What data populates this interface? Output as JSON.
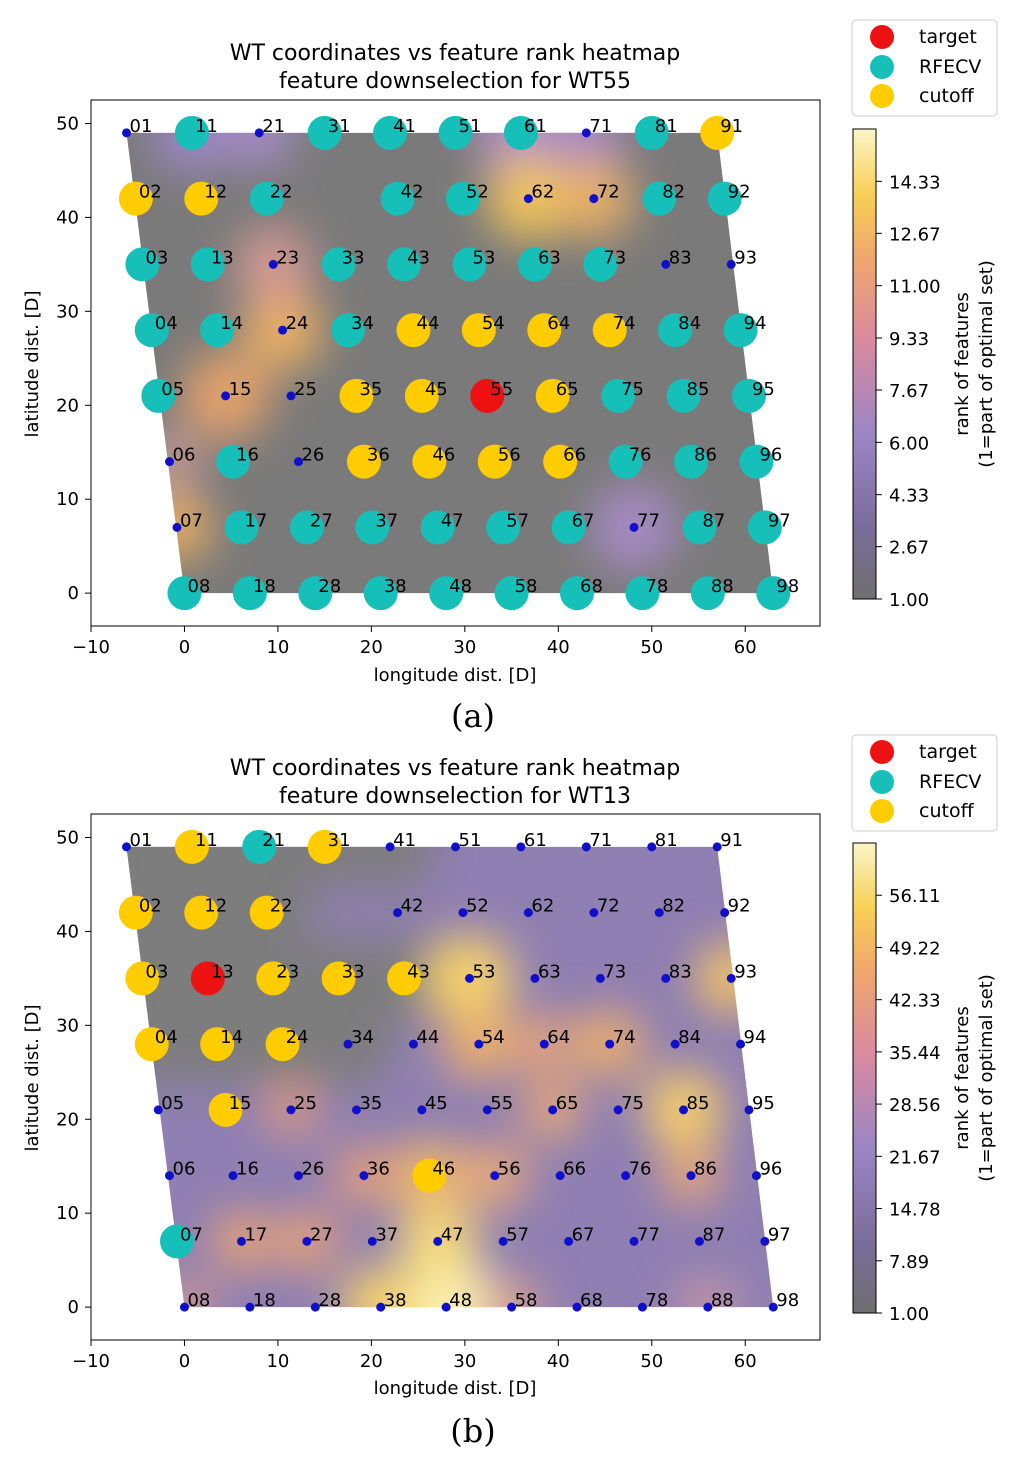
{
  "chart_data": [
    {
      "id": "a",
      "type": "scatter",
      "title": "WT coordinates vs feature rank heatmap",
      "subtitle": "feature downselection for WT55",
      "xlabel": "longitude dist. [D]",
      "ylabel": "latitude dist. [D]",
      "xlim": [
        -10,
        68
      ],
      "ylim": [
        -3.5,
        52.5
      ],
      "xticks": [
        "−10",
        "0",
        "10",
        "20",
        "30",
        "40",
        "50",
        "60"
      ],
      "xtick_values": [
        -10,
        0,
        10,
        20,
        30,
        40,
        50,
        60
      ],
      "yticks": [
        "0",
        "10",
        "20",
        "30",
        "40",
        "50"
      ],
      "ytick_values": [
        0,
        10,
        20,
        30,
        40,
        50
      ],
      "caption": "(a)",
      "colorbar": {
        "label": "rank of features",
        "label2": "(1=part of optimal set)",
        "tick_labels": [
          "1.00",
          "2.67",
          "4.33",
          "6.00",
          "7.67",
          "9.33",
          "11.00",
          "12.67",
          "14.33"
        ],
        "min": 1.0,
        "max": 16.0
      },
      "legend": {
        "position": "outside-top-right",
        "entries": [
          {
            "label": "target",
            "color": "#ee1111"
          },
          {
            "label": "RFECV",
            "color": "#17bfb9"
          },
          {
            "label": "cutoff",
            "color": "#ffcc00"
          }
        ]
      },
      "status": {
        "target": [
          "55"
        ],
        "rfecv": [
          "11",
          "31",
          "41",
          "51",
          "61",
          "81",
          "22",
          "42",
          "52",
          "82",
          "92",
          "03",
          "13",
          "33",
          "43",
          "53",
          "63",
          "73",
          "04",
          "14",
          "34",
          "84",
          "94",
          "05",
          "75",
          "85",
          "95",
          "16",
          "76",
          "86",
          "96",
          "17",
          "27",
          "37",
          "47",
          "57",
          "67",
          "87",
          "97",
          "08",
          "18",
          "28",
          "38",
          "48",
          "58",
          "68",
          "78",
          "88",
          "98"
        ],
        "cutoff": [
          "91",
          "02",
          "12",
          "44",
          "54",
          "64",
          "74",
          "35",
          "45",
          "65",
          "36",
          "46",
          "56",
          "66"
        ]
      },
      "hot_turbines": [
        "15",
        "24",
        "23",
        "62",
        "72",
        "07",
        "77",
        "21"
      ]
    },
    {
      "id": "b",
      "type": "scatter",
      "title": "WT coordinates vs feature rank heatmap",
      "subtitle": "feature downselection for WT13",
      "xlabel": "longitude dist. [D]",
      "ylabel": "latitude dist. [D]",
      "xlim": [
        -10,
        68
      ],
      "ylim": [
        -3.5,
        52.5
      ],
      "xticks": [
        "−10",
        "0",
        "10",
        "20",
        "30",
        "40",
        "50",
        "60"
      ],
      "xtick_values": [
        -10,
        0,
        10,
        20,
        30,
        40,
        50,
        60
      ],
      "yticks": [
        "0",
        "10",
        "20",
        "30",
        "40",
        "50"
      ],
      "ytick_values": [
        0,
        10,
        20,
        30,
        40,
        50
      ],
      "caption": "(b)",
      "colorbar": {
        "label": "rank of features",
        "label2": "(1=part of optimal set)",
        "tick_labels": [
          "1.00",
          "7.89",
          "14.78",
          "21.67",
          "28.56",
          "35.44",
          "42.33",
          "49.22",
          "56.11"
        ],
        "min": 1.0,
        "max": 63.0
      },
      "legend": {
        "position": "outside-top-right",
        "entries": [
          {
            "label": "target",
            "color": "#ee1111"
          },
          {
            "label": "RFECV",
            "color": "#17bfb9"
          },
          {
            "label": "cutoff",
            "color": "#ffcc00"
          }
        ]
      },
      "status": {
        "target": [
          "13"
        ],
        "rfecv": [
          "21",
          "07"
        ],
        "cutoff": [
          "11",
          "31",
          "02",
          "12",
          "22",
          "03",
          "23",
          "33",
          "43",
          "04",
          "14",
          "24",
          "15",
          "46"
        ]
      },
      "hot_turbines": [
        "48",
        "53",
        "93",
        "85",
        "38",
        "47",
        "54",
        "74",
        "64"
      ]
    }
  ],
  "turbines": [
    {
      "id": "01",
      "x": -6.2,
      "y": 49
    },
    {
      "id": "11",
      "x": 0.8,
      "y": 49
    },
    {
      "id": "21",
      "x": 8,
      "y": 49
    },
    {
      "id": "31",
      "x": 15,
      "y": 49
    },
    {
      "id": "41",
      "x": 22,
      "y": 49
    },
    {
      "id": "51",
      "x": 29,
      "y": 49
    },
    {
      "id": "61",
      "x": 36,
      "y": 49
    },
    {
      "id": "71",
      "x": 43,
      "y": 49
    },
    {
      "id": "81",
      "x": 50,
      "y": 49
    },
    {
      "id": "91",
      "x": 57,
      "y": 49
    },
    {
      "id": "02",
      "x": -5.2,
      "y": 42
    },
    {
      "id": "12",
      "x": 1.8,
      "y": 42
    },
    {
      "id": "22",
      "x": 8.8,
      "y": 42
    },
    {
      "id": "42",
      "x": 22.8,
      "y": 42
    },
    {
      "id": "52",
      "x": 29.8,
      "y": 42
    },
    {
      "id": "62",
      "x": 36.8,
      "y": 42
    },
    {
      "id": "72",
      "x": 43.8,
      "y": 42
    },
    {
      "id": "82",
      "x": 50.8,
      "y": 42
    },
    {
      "id": "92",
      "x": 57.8,
      "y": 42
    },
    {
      "id": "03",
      "x": -4.5,
      "y": 35
    },
    {
      "id": "13",
      "x": 2.5,
      "y": 35
    },
    {
      "id": "23",
      "x": 9.5,
      "y": 35
    },
    {
      "id": "33",
      "x": 16.5,
      "y": 35
    },
    {
      "id": "43",
      "x": 23.5,
      "y": 35
    },
    {
      "id": "53",
      "x": 30.5,
      "y": 35
    },
    {
      "id": "63",
      "x": 37.5,
      "y": 35
    },
    {
      "id": "73",
      "x": 44.5,
      "y": 35
    },
    {
      "id": "83",
      "x": 51.5,
      "y": 35
    },
    {
      "id": "93",
      "x": 58.5,
      "y": 35
    },
    {
      "id": "04",
      "x": -3.5,
      "y": 28
    },
    {
      "id": "14",
      "x": 3.5,
      "y": 28
    },
    {
      "id": "24",
      "x": 10.5,
      "y": 28
    },
    {
      "id": "34",
      "x": 17.5,
      "y": 28
    },
    {
      "id": "44",
      "x": 24.5,
      "y": 28
    },
    {
      "id": "54",
      "x": 31.5,
      "y": 28
    },
    {
      "id": "64",
      "x": 38.5,
      "y": 28
    },
    {
      "id": "74",
      "x": 45.5,
      "y": 28
    },
    {
      "id": "84",
      "x": 52.5,
      "y": 28
    },
    {
      "id": "94",
      "x": 59.5,
      "y": 28
    },
    {
      "id": "05",
      "x": -2.8,
      "y": 21
    },
    {
      "id": "15",
      "x": 4.4,
      "y": 21
    },
    {
      "id": "25",
      "x": 11.4,
      "y": 21
    },
    {
      "id": "35",
      "x": 18.4,
      "y": 21
    },
    {
      "id": "45",
      "x": 25.4,
      "y": 21
    },
    {
      "id": "55",
      "x": 32.4,
      "y": 21
    },
    {
      "id": "65",
      "x": 39.4,
      "y": 21
    },
    {
      "id": "75",
      "x": 46.4,
      "y": 21
    },
    {
      "id": "85",
      "x": 53.4,
      "y": 21
    },
    {
      "id": "95",
      "x": 60.4,
      "y": 21
    },
    {
      "id": "06",
      "x": -1.6,
      "y": 14
    },
    {
      "id": "16",
      "x": 5.2,
      "y": 14
    },
    {
      "id": "26",
      "x": 12.2,
      "y": 14
    },
    {
      "id": "36",
      "x": 19.2,
      "y": 14
    },
    {
      "id": "46",
      "x": 26.2,
      "y": 14
    },
    {
      "id": "56",
      "x": 33.2,
      "y": 14
    },
    {
      "id": "66",
      "x": 40.2,
      "y": 14
    },
    {
      "id": "76",
      "x": 47.2,
      "y": 14
    },
    {
      "id": "86",
      "x": 54.2,
      "y": 14
    },
    {
      "id": "96",
      "x": 61.2,
      "y": 14
    },
    {
      "id": "07",
      "x": -0.8,
      "y": 7
    },
    {
      "id": "17",
      "x": 6.1,
      "y": 7
    },
    {
      "id": "27",
      "x": 13.1,
      "y": 7
    },
    {
      "id": "37",
      "x": 20.1,
      "y": 7
    },
    {
      "id": "47",
      "x": 27.1,
      "y": 7
    },
    {
      "id": "57",
      "x": 34.1,
      "y": 7
    },
    {
      "id": "67",
      "x": 41.1,
      "y": 7
    },
    {
      "id": "77",
      "x": 48.1,
      "y": 7
    },
    {
      "id": "87",
      "x": 55.1,
      "y": 7
    },
    {
      "id": "97",
      "x": 62.1,
      "y": 7
    },
    {
      "id": "08",
      "x": 0,
      "y": 0
    },
    {
      "id": "18",
      "x": 7,
      "y": 0
    },
    {
      "id": "28",
      "x": 14,
      "y": 0
    },
    {
      "id": "38",
      "x": 21,
      "y": 0
    },
    {
      "id": "48",
      "x": 28,
      "y": 0
    },
    {
      "id": "58",
      "x": 35,
      "y": 0
    },
    {
      "id": "68",
      "x": 42,
      "y": 0
    },
    {
      "id": "78",
      "x": 49,
      "y": 0
    },
    {
      "id": "88",
      "x": 56,
      "y": 0
    },
    {
      "id": "98",
      "x": 63,
      "y": 0
    }
  ]
}
